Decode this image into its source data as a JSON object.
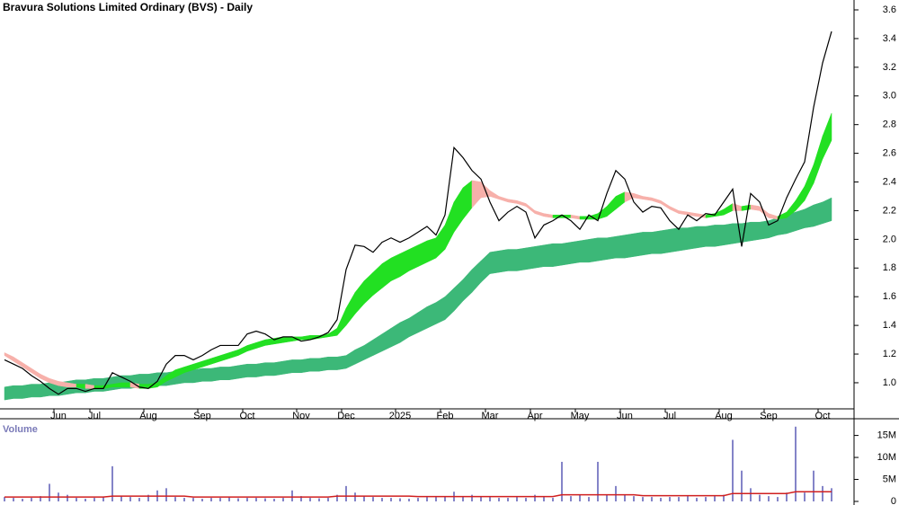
{
  "chart_data": [
    {
      "type": "line",
      "title": "Bravura Solutions Limited Ordinary (BVS) - Daily",
      "categories": [
        null,
        null,
        null,
        null,
        null,
        null,
        "Jun",
        null,
        null,
        null,
        "Jul",
        null,
        null,
        null,
        null,
        null,
        "Aug",
        null,
        null,
        null,
        null,
        null,
        "Sep",
        null,
        null,
        null,
        null,
        "Oct",
        null,
        null,
        null,
        null,
        null,
        "Nov",
        null,
        null,
        null,
        null,
        "Dec",
        null,
        null,
        null,
        null,
        null,
        "2025",
        null,
        null,
        null,
        null,
        "Feb",
        null,
        null,
        null,
        null,
        "Mar",
        null,
        null,
        null,
        null,
        "Apr",
        null,
        null,
        null,
        null,
        "May",
        null,
        null,
        null,
        null,
        "Jun",
        null,
        null,
        null,
        null,
        "Jul",
        null,
        null,
        null,
        null,
        null,
        "Aug",
        null,
        null,
        null,
        null,
        "Sep",
        null,
        null,
        null,
        null,
        null,
        "Oct",
        null
      ],
      "values": [
        1.16,
        1.13,
        1.1,
        1.05,
        1.01,
        0.96,
        0.92,
        0.96,
        0.96,
        0.94,
        0.96,
        0.96,
        1.07,
        1.04,
        1.01,
        0.97,
        0.96,
        1.01,
        1.13,
        1.19,
        1.19,
        1.16,
        1.19,
        1.23,
        1.26,
        1.26,
        1.26,
        1.34,
        1.36,
        1.34,
        1.3,
        1.32,
        1.32,
        1.29,
        1.3,
        1.32,
        1.35,
        1.44,
        1.79,
        1.96,
        1.95,
        1.91,
        1.98,
        2.01,
        1.98,
        2.01,
        2.05,
        2.09,
        2.03,
        2.17,
        2.64,
        2.57,
        2.48,
        2.42,
        2.26,
        2.13,
        2.19,
        2.23,
        2.19,
        2.01,
        2.1,
        2.13,
        2.17,
        2.13,
        2.07,
        2.17,
        2.13,
        2.32,
        2.48,
        2.42,
        2.26,
        2.19,
        2.23,
        2.22,
        2.13,
        2.07,
        2.17,
        2.13,
        2.18,
        2.17,
        2.26,
        2.35,
        1.95,
        2.32,
        2.26,
        2.1,
        2.13,
        2.29,
        2.42,
        2.54,
        2.92,
        3.23,
        3.45
      ],
      "color": "#000000",
      "short_band": {
        "color_up": "#22e022",
        "color_down": "#f7b0aa",
        "upper": [
          1.21,
          1.18,
          1.14,
          1.1,
          1.06,
          1.03,
          1.01,
          1.0,
          0.99,
          0.99,
          0.98,
          0.98,
          0.99,
          1.0,
          1.0,
          0.99,
          0.99,
          1.0,
          1.05,
          1.09,
          1.11,
          1.13,
          1.15,
          1.17,
          1.19,
          1.21,
          1.23,
          1.26,
          1.28,
          1.3,
          1.31,
          1.32,
          1.32,
          1.32,
          1.33,
          1.33,
          1.34,
          1.38,
          1.52,
          1.63,
          1.71,
          1.77,
          1.83,
          1.87,
          1.9,
          1.93,
          1.96,
          1.99,
          2.01,
          2.1,
          2.26,
          2.36,
          2.41,
          2.4,
          2.34,
          2.3,
          2.28,
          2.27,
          2.25,
          2.2,
          2.18,
          2.17,
          2.17,
          2.17,
          2.16,
          2.16,
          2.18,
          2.23,
          2.3,
          2.33,
          2.32,
          2.3,
          2.29,
          2.27,
          2.23,
          2.2,
          2.19,
          2.18,
          2.17,
          2.18,
          2.21,
          2.25,
          2.23,
          2.24,
          2.23,
          2.18,
          2.16,
          2.19,
          2.27,
          2.37,
          2.52,
          2.72,
          2.88
        ],
        "lower": [
          1.19,
          1.15,
          1.11,
          1.07,
          1.03,
          1.0,
          0.98,
          0.97,
          0.97,
          0.96,
          0.96,
          0.96,
          0.97,
          0.97,
          0.97,
          0.96,
          0.96,
          0.97,
          1.01,
          1.04,
          1.07,
          1.09,
          1.11,
          1.13,
          1.15,
          1.17,
          1.19,
          1.22,
          1.24,
          1.26,
          1.27,
          1.28,
          1.29,
          1.3,
          1.3,
          1.31,
          1.32,
          1.33,
          1.4,
          1.48,
          1.55,
          1.61,
          1.66,
          1.71,
          1.74,
          1.78,
          1.81,
          1.84,
          1.87,
          1.93,
          2.05,
          2.14,
          2.22,
          2.29,
          2.3,
          2.28,
          2.26,
          2.25,
          2.23,
          2.18,
          2.16,
          2.15,
          2.15,
          2.15,
          2.14,
          2.14,
          2.14,
          2.16,
          2.21,
          2.26,
          2.29,
          2.28,
          2.27,
          2.25,
          2.21,
          2.18,
          2.17,
          2.16,
          2.15,
          2.16,
          2.17,
          2.2,
          2.2,
          2.21,
          2.2,
          2.15,
          2.14,
          2.15,
          2.2,
          2.27,
          2.39,
          2.56,
          2.69
        ]
      },
      "long_band": {
        "color": "#3cb878",
        "upper": [
          0.97,
          0.98,
          0.98,
          0.99,
          0.99,
          1.0,
          1.0,
          1.01,
          1.02,
          1.02,
          1.03,
          1.03,
          1.04,
          1.05,
          1.05,
          1.06,
          1.06,
          1.07,
          1.07,
          1.08,
          1.09,
          1.09,
          1.1,
          1.1,
          1.11,
          1.11,
          1.12,
          1.13,
          1.13,
          1.14,
          1.14,
          1.15,
          1.16,
          1.16,
          1.17,
          1.17,
          1.18,
          1.18,
          1.19,
          1.23,
          1.26,
          1.3,
          1.34,
          1.38,
          1.42,
          1.45,
          1.49,
          1.53,
          1.56,
          1.6,
          1.66,
          1.72,
          1.79,
          1.85,
          1.91,
          1.92,
          1.93,
          1.93,
          1.94,
          1.95,
          1.96,
          1.97,
          1.97,
          1.98,
          1.99,
          2.0,
          2.01,
          2.01,
          2.02,
          2.03,
          2.04,
          2.05,
          2.05,
          2.06,
          2.07,
          2.08,
          2.08,
          2.09,
          2.09,
          2.1,
          2.1,
          2.11,
          2.11,
          2.12,
          2.12,
          2.13,
          2.15,
          2.17,
          2.19,
          2.21,
          2.24,
          2.26,
          2.29
        ],
        "lower": [
          0.88,
          0.89,
          0.89,
          0.9,
          0.9,
          0.91,
          0.91,
          0.92,
          0.93,
          0.93,
          0.94,
          0.94,
          0.95,
          0.96,
          0.96,
          0.97,
          0.97,
          0.98,
          0.98,
          0.99,
          1.0,
          1.0,
          1.01,
          1.01,
          1.02,
          1.02,
          1.03,
          1.04,
          1.04,
          1.05,
          1.05,
          1.06,
          1.07,
          1.07,
          1.08,
          1.08,
          1.09,
          1.09,
          1.1,
          1.13,
          1.16,
          1.19,
          1.22,
          1.25,
          1.28,
          1.32,
          1.35,
          1.38,
          1.41,
          1.44,
          1.5,
          1.57,
          1.63,
          1.7,
          1.76,
          1.77,
          1.78,
          1.78,
          1.79,
          1.8,
          1.81,
          1.81,
          1.82,
          1.83,
          1.84,
          1.84,
          1.85,
          1.86,
          1.87,
          1.87,
          1.88,
          1.89,
          1.9,
          1.9,
          1.91,
          1.92,
          1.93,
          1.94,
          1.95,
          1.95,
          1.96,
          1.97,
          1.98,
          1.99,
          2.0,
          2.01,
          2.03,
          2.04,
          2.06,
          2.08,
          2.09,
          2.11,
          2.13
        ]
      },
      "ylim": [
        0.818,
        3.669
      ],
      "yticks": [
        {
          "value": 1,
          "label": "1.0"
        },
        1.2,
        1.4,
        1.6,
        1.8,
        {
          "value": 2,
          "label": "2.0"
        },
        2.2,
        2.4,
        2.6,
        2.8,
        {
          "value": 3,
          "label": "3.0"
        },
        3.2,
        3.4,
        3.6
      ]
    },
    {
      "type": "bar",
      "title": "Volume",
      "color": "#8484c8",
      "values": [
        1000000,
        800000,
        600000,
        800000,
        1200000,
        4000000,
        2000000,
        1500000,
        800000,
        600000,
        800000,
        1000000,
        8000000,
        1200000,
        1000000,
        800000,
        1500000,
        2500000,
        3000000,
        1000000,
        800000,
        800000,
        600000,
        800000,
        800000,
        900000,
        700000,
        800000,
        800000,
        700000,
        600000,
        800000,
        2500000,
        1200000,
        800000,
        700000,
        800000,
        1500000,
        3500000,
        2000000,
        1200000,
        1000000,
        800000,
        800000,
        700000,
        600000,
        800000,
        1000000,
        1000000,
        1200000,
        2200000,
        1200000,
        1500000,
        1200000,
        1000000,
        800000,
        800000,
        1000000,
        800000,
        1500000,
        1000000,
        800000,
        9000000,
        1200000,
        1500000,
        1000000,
        9000000,
        1500000,
        3500000,
        1500000,
        1200000,
        1000000,
        1000000,
        800000,
        1000000,
        1000000,
        1200000,
        800000,
        1000000,
        1200000,
        1500000,
        14000000,
        7000000,
        3000000,
        1500000,
        1200000,
        1000000,
        2000000,
        17000000,
        2000000,
        7000000,
        3500000,
        3000000
      ],
      "average": {
        "color": "#d02020",
        "values": [
          1000000,
          1000000,
          1000000,
          1000000,
          1000000,
          1000000,
          1000000,
          1000000,
          1000000,
          1000000,
          1000000,
          1000000,
          1200000,
          1200000,
          1200000,
          1200000,
          1200000,
          1200000,
          1200000,
          1200000,
          1200000,
          1000000,
          1000000,
          1000000,
          1000000,
          1000000,
          1000000,
          1000000,
          1000000,
          1000000,
          1000000,
          1000000,
          1000000,
          1000000,
          1000000,
          1000000,
          1000000,
          1200000,
          1200000,
          1200000,
          1200000,
          1200000,
          1200000,
          1200000,
          1200000,
          1200000,
          1100000,
          1100000,
          1100000,
          1100000,
          1100000,
          1100000,
          1100000,
          1100000,
          1100000,
          1100000,
          1100000,
          1100000,
          1100000,
          1100000,
          1100000,
          1100000,
          1500000,
          1500000,
          1500000,
          1500000,
          1500000,
          1500000,
          1500000,
          1500000,
          1500000,
          1300000,
          1300000,
          1300000,
          1300000,
          1300000,
          1300000,
          1300000,
          1300000,
          1300000,
          1300000,
          1800000,
          1800000,
          1800000,
          1800000,
          1800000,
          1800000,
          1800000,
          2200000,
          2200000,
          2200000,
          2200000,
          2200000
        ]
      },
      "ylim": [
        0,
        18800000
      ],
      "yticks": [
        0,
        {
          "value": 5000000,
          "label": "5M"
        },
        {
          "value": 10000000,
          "label": "10M"
        },
        {
          "value": 15000000,
          "label": "15M"
        }
      ]
    }
  ]
}
